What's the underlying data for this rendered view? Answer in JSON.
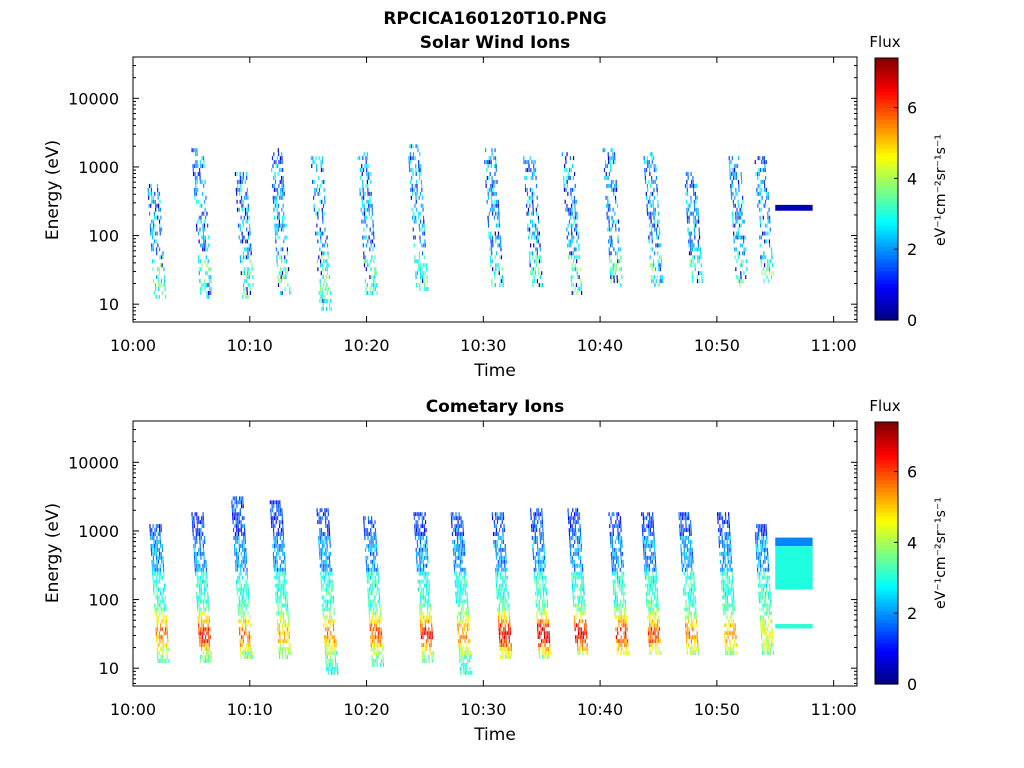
{
  "figure": {
    "title_line1": "RPCICA160120T10.PNG"
  },
  "colorbar": {
    "label": "Flux",
    "unit": "eV⁻¹cm⁻²sr⁻¹s⁻¹",
    "min": 0,
    "max": 7.4,
    "ticks": [
      "0",
      "2",
      "4",
      "6"
    ],
    "colormap": "jet"
  },
  "chart_data": [
    {
      "type": "heatmap",
      "title": "Solar Wind Ions",
      "xlabel": "Time",
      "ylabel": "Energy (eV)",
      "x_ticks": [
        "10:00",
        "10:10",
        "10:20",
        "10:30",
        "10:40",
        "10:50",
        "11:00"
      ],
      "x_range_minutes": [
        0,
        62
      ],
      "y_scale": "log",
      "ylim": [
        5.5,
        40000
      ],
      "y_ticks": [
        "10",
        "100",
        "1000",
        "10000"
      ],
      "flux_range": [
        0,
        7.4
      ],
      "bursts": [
        {
          "t": 2.0,
          "emin": 12,
          "emax": 650,
          "peak": 2.9
        },
        {
          "t": 5.8,
          "emin": 12,
          "emax": 1900,
          "peak": 3.0
        },
        {
          "t": 9.5,
          "emin": 12,
          "emax": 900,
          "peak": 3.2
        },
        {
          "t": 12.5,
          "emin": 14,
          "emax": 2000,
          "peak": 2.6
        },
        {
          "t": 16.0,
          "emin": 8,
          "emax": 1500,
          "peak": 2.5
        },
        {
          "t": 20.0,
          "emin": 14,
          "emax": 1600,
          "peak": 2.8
        },
        {
          "t": 24.3,
          "emin": 15,
          "emax": 2300,
          "peak": 3.0
        },
        {
          "t": 30.8,
          "emin": 18,
          "emax": 1900,
          "peak": 3.2
        },
        {
          "t": 34.2,
          "emin": 18,
          "emax": 1500,
          "peak": 3.6
        },
        {
          "t": 37.5,
          "emin": 13,
          "emax": 1700,
          "peak": 3.4
        },
        {
          "t": 41.0,
          "emin": 18,
          "emax": 2000,
          "peak": 3.2
        },
        {
          "t": 44.5,
          "emin": 18,
          "emax": 1600,
          "peak": 3.2
        },
        {
          "t": 48.0,
          "emin": 20,
          "emax": 800,
          "peak": 2.7
        },
        {
          "t": 51.8,
          "emin": 18,
          "emax": 1400,
          "peak": 2.6
        },
        {
          "t": 54.0,
          "emin": 20,
          "emax": 1500,
          "peak": 2.8
        }
      ],
      "bands": [
        {
          "t_start": 55.0,
          "t_end": 58.2,
          "emin": 230,
          "emax": 280,
          "flux": 0.4
        }
      ]
    },
    {
      "type": "heatmap",
      "title": "Cometary Ions",
      "xlabel": "Time",
      "ylabel": "Energy (eV)",
      "x_ticks": [
        "10:00",
        "10:10",
        "10:20",
        "10:30",
        "10:40",
        "10:50",
        "11:00"
      ],
      "x_range_minutes": [
        0,
        62
      ],
      "y_scale": "log",
      "ylim": [
        5.5,
        40000
      ],
      "y_ticks": [
        "10",
        "100",
        "1000",
        "10000"
      ],
      "flux_range": [
        0,
        7.4
      ],
      "bursts": [
        {
          "t": 2.2,
          "emin": 12,
          "emax": 1200,
          "peak": 5.6
        },
        {
          "t": 5.8,
          "emin": 12,
          "emax": 1800,
          "peak": 6.2
        },
        {
          "t": 9.2,
          "emin": 14,
          "emax": 3000,
          "peak": 5.6
        },
        {
          "t": 12.5,
          "emin": 14,
          "emax": 2800,
          "peak": 5.0
        },
        {
          "t": 16.5,
          "emin": 8,
          "emax": 2200,
          "peak": 5.4
        },
        {
          "t": 20.5,
          "emin": 10,
          "emax": 1600,
          "peak": 5.7
        },
        {
          "t": 24.8,
          "emin": 12,
          "emax": 2000,
          "peak": 6.4
        },
        {
          "t": 28.0,
          "emin": 8,
          "emax": 1800,
          "peak": 5.4
        },
        {
          "t": 31.5,
          "emin": 14,
          "emax": 2000,
          "peak": 6.6
        },
        {
          "t": 34.8,
          "emin": 14,
          "emax": 2100,
          "peak": 6.6
        },
        {
          "t": 38.0,
          "emin": 16,
          "emax": 2100,
          "peak": 6.6
        },
        {
          "t": 41.5,
          "emin": 16,
          "emax": 2000,
          "peak": 6.2
        },
        {
          "t": 44.3,
          "emin": 16,
          "emax": 1800,
          "peak": 6.0
        },
        {
          "t": 47.5,
          "emin": 16,
          "emax": 1900,
          "peak": 5.6
        },
        {
          "t": 50.8,
          "emin": 16,
          "emax": 1900,
          "peak": 5.2
        },
        {
          "t": 54.0,
          "emin": 16,
          "emax": 1300,
          "peak": 4.6
        }
      ],
      "bands": [
        {
          "t_start": 55.0,
          "t_end": 58.2,
          "emin": 600,
          "emax": 800,
          "flux": 1.9
        },
        {
          "t_start": 55.0,
          "t_end": 58.2,
          "emin": 140,
          "emax": 600,
          "flux": 3.0
        },
        {
          "t_start": 55.0,
          "t_end": 58.2,
          "emin": 38,
          "emax": 44,
          "flux": 3.1
        }
      ]
    }
  ]
}
